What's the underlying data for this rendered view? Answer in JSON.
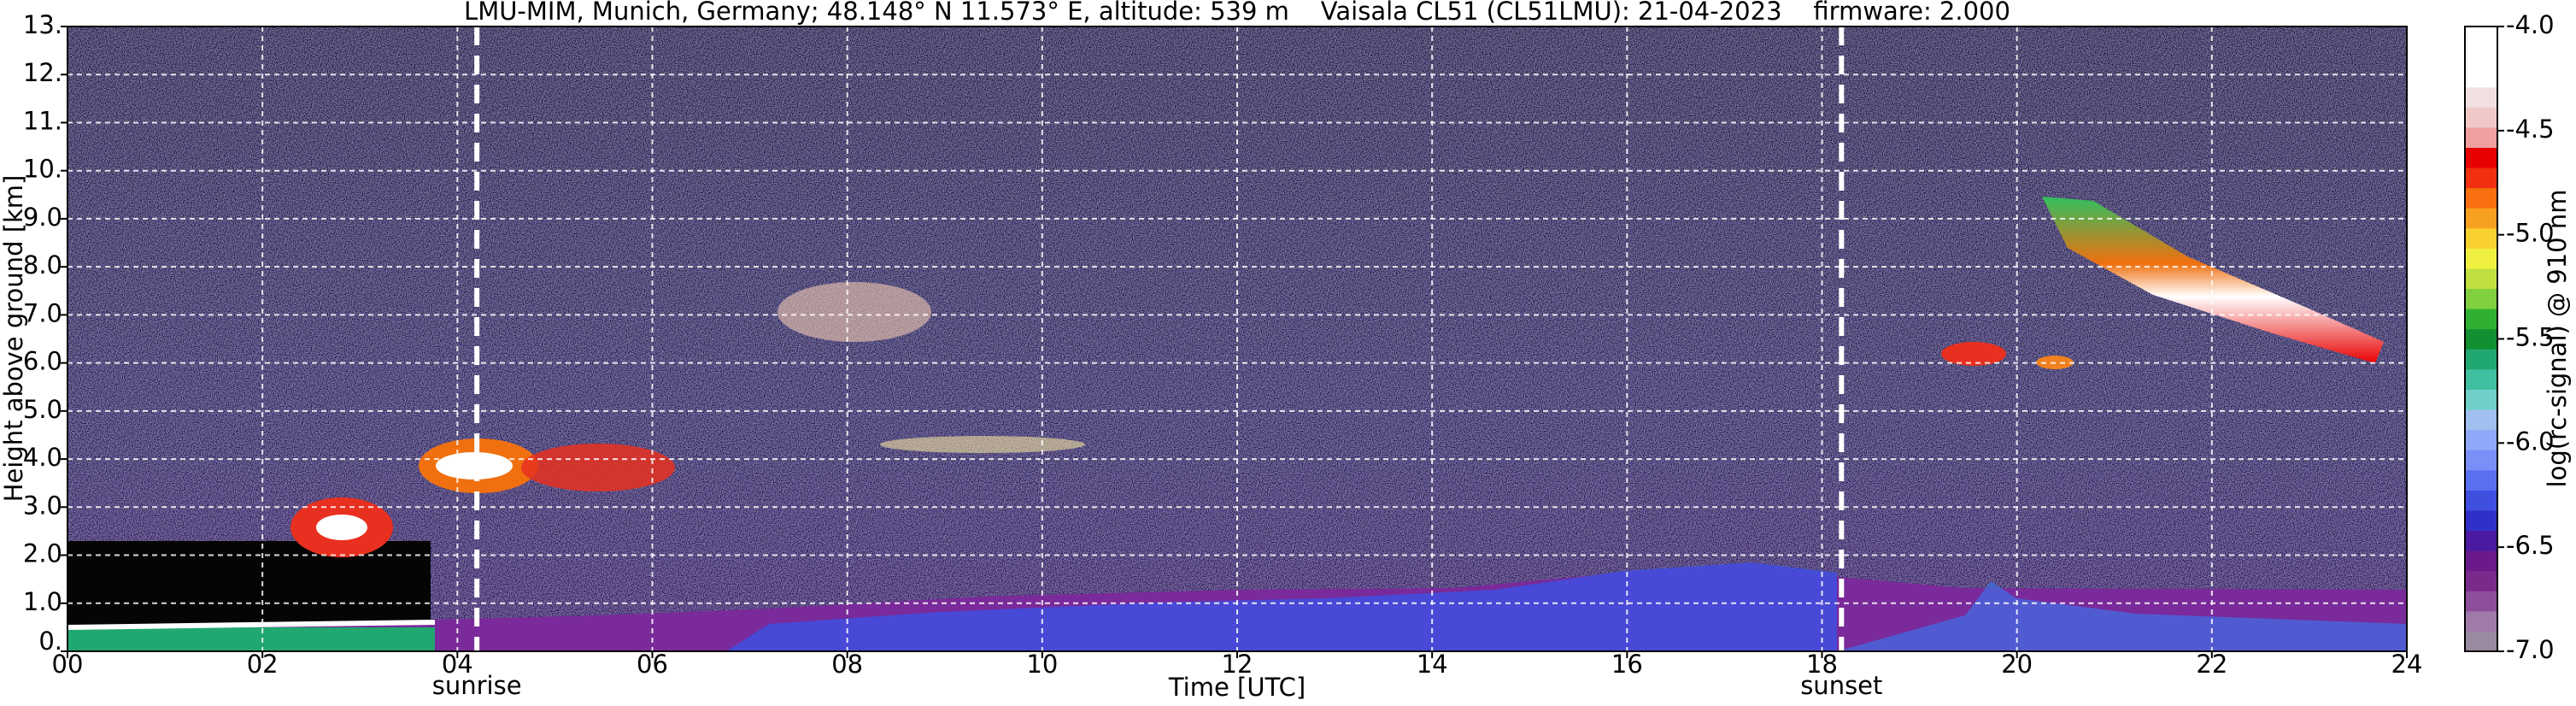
{
  "chart_data": {
    "type": "heatmap",
    "title": "LMU-MIM, Munich, Germany; 48.148° N 11.573° E, altitude: 539 m    Vaisala CL51 (CL51LMU): 21-04-2023    firmware: 2.000",
    "xlabel": "Time [UTC]",
    "ylabel": "Height above ground [km]",
    "xlim": [
      0,
      24
    ],
    "xticks": [
      {
        "value": 0,
        "label": "00"
      },
      {
        "value": 2,
        "label": "02"
      },
      {
        "value": 4,
        "label": "04"
      },
      {
        "value": 6,
        "label": "06"
      },
      {
        "value": 8,
        "label": "08"
      },
      {
        "value": 10,
        "label": "10"
      },
      {
        "value": 12,
        "label": "12"
      },
      {
        "value": 14,
        "label": "14"
      },
      {
        "value": 16,
        "label": "16"
      },
      {
        "value": 18,
        "label": "18"
      },
      {
        "value": 20,
        "label": "20"
      },
      {
        "value": 22,
        "label": "22"
      },
      {
        "value": 24,
        "label": "24"
      }
    ],
    "ylim": [
      0,
      13
    ],
    "yticks": [
      {
        "value": 0,
        "label": "0."
      },
      {
        "value": 1,
        "label": "1.0"
      },
      {
        "value": 2,
        "label": "2.0"
      },
      {
        "value": 3,
        "label": "3.0"
      },
      {
        "value": 4,
        "label": "4.0"
      },
      {
        "value": 5,
        "label": "5.0"
      },
      {
        "value": 6,
        "label": "6.0"
      },
      {
        "value": 7,
        "label": "7.0"
      },
      {
        "value": 8,
        "label": "8.0"
      },
      {
        "value": 9,
        "label": "9.0"
      },
      {
        "value": 10,
        "label": "10."
      },
      {
        "value": 11,
        "label": "11."
      },
      {
        "value": 12,
        "label": "12."
      },
      {
        "value": 13,
        "label": "13."
      }
    ],
    "grid": true,
    "annotations": [
      {
        "text": "sunrise",
        "x": 4.2
      },
      {
        "text": "sunset",
        "x": 18.2
      }
    ],
    "colorbar": {
      "label": "log(rc-signal) @ 910 nm",
      "lim": [
        -7,
        -4
      ],
      "ticks": [
        {
          "value": -4,
          "label": "-4.0"
        },
        -4.5,
        {
          "value": -5,
          "label": "-5.0"
        },
        -5.5,
        {
          "value": -6,
          "label": "-6.0"
        },
        -6.5,
        {
          "value": -7,
          "label": "-7.0"
        }
      ],
      "colors": [
        "#9a8aa0",
        "#a07aa8",
        "#8e4f9a",
        "#7a2a8a",
        "#6a1a8a",
        "#4a1aa0",
        "#3030c8",
        "#3f4fe0",
        "#5a70f0",
        "#7a90f8",
        "#90a8f8",
        "#a0c0f0",
        "#70d0c8",
        "#40c0a0",
        "#20a870",
        "#109030",
        "#30b030",
        "#80d040",
        "#c0e040",
        "#f0f040",
        "#f8d030",
        "#f8a020",
        "#f87010",
        "#f03010",
        "#e80000",
        "#f0a0a0",
        "#f0c8c8",
        "#f0e0e0",
        "#ffffff",
        "#ffffff",
        "#ffffff"
      ]
    }
  }
}
